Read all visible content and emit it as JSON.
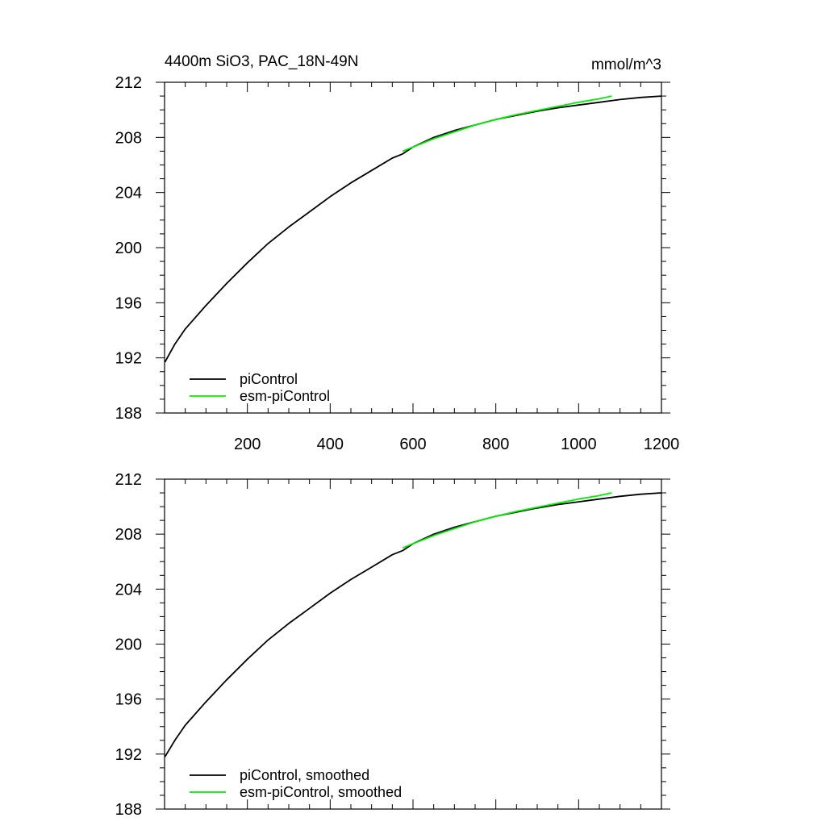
{
  "chart_data": [
    {
      "type": "line",
      "title": "4400m SiO3, PAC_18N-49N",
      "units": "mmol/m^3",
      "xlim": [
        0,
        1200
      ],
      "ylim": [
        188,
        212
      ],
      "x_ticks": [
        200,
        400,
        600,
        800,
        1000,
        1200
      ],
      "y_ticks": [
        188,
        192,
        196,
        200,
        204,
        208,
        212
      ],
      "legend_position": "bottom-left",
      "series": [
        {
          "name": "piControl",
          "color": "#000000",
          "points": [
            [
              1,
              191.7
            ],
            [
              25,
              193.0
            ],
            [
              50,
              194.1
            ],
            [
              100,
              195.8
            ],
            [
              150,
              197.4
            ],
            [
              200,
              198.9
            ],
            [
              250,
              200.3
            ],
            [
              300,
              201.5
            ],
            [
              350,
              202.6
            ],
            [
              400,
              203.7
            ],
            [
              450,
              204.7
            ],
            [
              500,
              205.6
            ],
            [
              550,
              206.5
            ],
            [
              575,
              206.8
            ],
            [
              600,
              207.3
            ],
            [
              650,
              208.0
            ],
            [
              700,
              208.5
            ],
            [
              750,
              208.9
            ],
            [
              800,
              209.3
            ],
            [
              850,
              209.6
            ],
            [
              900,
              209.9
            ],
            [
              950,
              210.15
            ],
            [
              1000,
              210.35
            ],
            [
              1050,
              210.55
            ],
            [
              1100,
              210.75
            ],
            [
              1150,
              210.9
            ],
            [
              1200,
              211.0
            ]
          ]
        },
        {
          "name": "esm-piControl",
          "color": "#00ee00",
          "points": [
            [
              575,
              207.0
            ],
            [
              600,
              207.3
            ],
            [
              650,
              207.9
            ],
            [
              700,
              208.4
            ],
            [
              750,
              208.9
            ],
            [
              800,
              209.3
            ],
            [
              850,
              209.65
            ],
            [
              900,
              209.95
            ],
            [
              950,
              210.25
            ],
            [
              1000,
              210.55
            ],
            [
              1050,
              210.8
            ],
            [
              1080,
              211.0
            ]
          ]
        }
      ]
    },
    {
      "type": "line",
      "xlim": [
        0,
        1200
      ],
      "ylim": [
        188,
        212
      ],
      "y_ticks": [
        188,
        192,
        196,
        200,
        204,
        208,
        212
      ],
      "legend_position": "bottom-left",
      "series": [
        {
          "name": "piControl, smoothed",
          "color": "#000000",
          "points": [
            [
              1,
              191.8
            ],
            [
              25,
              193.0
            ],
            [
              50,
              194.1
            ],
            [
              100,
              195.8
            ],
            [
              150,
              197.4
            ],
            [
              200,
              198.9
            ],
            [
              250,
              200.3
            ],
            [
              300,
              201.5
            ],
            [
              350,
              202.6
            ],
            [
              400,
              203.7
            ],
            [
              450,
              204.7
            ],
            [
              500,
              205.6
            ],
            [
              550,
              206.5
            ],
            [
              575,
              206.8
            ],
            [
              600,
              207.3
            ],
            [
              650,
              208.0
            ],
            [
              700,
              208.5
            ],
            [
              750,
              208.9
            ],
            [
              800,
              209.3
            ],
            [
              850,
              209.6
            ],
            [
              900,
              209.9
            ],
            [
              950,
              210.15
            ],
            [
              1000,
              210.35
            ],
            [
              1050,
              210.55
            ],
            [
              1100,
              210.75
            ],
            [
              1150,
              210.9
            ],
            [
              1200,
              211.0
            ]
          ]
        },
        {
          "name": "esm-piControl, smoothed",
          "color": "#00ee00",
          "points": [
            [
              575,
              207.0
            ],
            [
              600,
              207.3
            ],
            [
              650,
              207.9
            ],
            [
              700,
              208.4
            ],
            [
              750,
              208.9
            ],
            [
              800,
              209.3
            ],
            [
              850,
              209.65
            ],
            [
              900,
              209.95
            ],
            [
              950,
              210.25
            ],
            [
              1000,
              210.55
            ],
            [
              1050,
              210.8
            ],
            [
              1080,
              211.0
            ]
          ]
        }
      ]
    }
  ]
}
